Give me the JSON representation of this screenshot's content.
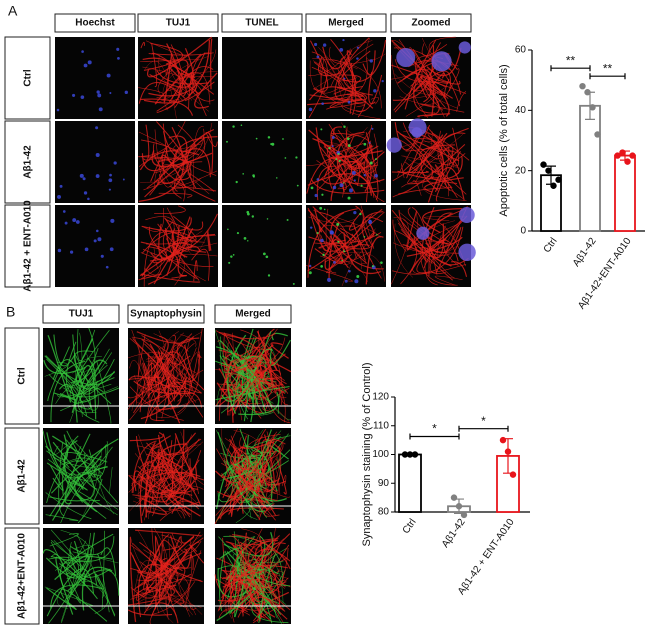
{
  "panels": {
    "a": {
      "label": "A",
      "columns": [
        "Hoechst",
        "TUJ1",
        "TUNEL",
        "Merged",
        "Zoomed"
      ],
      "rows": [
        "Ctrl",
        "Aβ1-42",
        "Aβ1-42 + ENT-A010"
      ]
    },
    "b": {
      "label": "B",
      "columns": [
        "TUJ1",
        "Synaptophysin",
        "Merged"
      ],
      "rows": [
        "Ctrl",
        "Aβ1-42",
        "Aβ1-42+ENT-A010"
      ]
    }
  },
  "chart_data": [
    {
      "type": "bar",
      "y_label": "Apoptotic cells (% of total cells)",
      "categories": [
        "Ctrl",
        "Aβ1-42",
        "Aβ1-42+ENT-A010"
      ],
      "values": [
        18.5,
        41.5,
        25
      ],
      "errors": [
        3,
        4.5,
        1.5
      ],
      "points": [
        [
          22,
          20,
          15,
          17
        ],
        [
          48,
          46,
          41,
          32
        ],
        [
          25,
          26,
          23,
          25
        ]
      ],
      "colors": [
        "#000000",
        "#808080",
        "#e8141b"
      ],
      "ylim": [
        0,
        60
      ],
      "yticks": [
        0,
        20,
        40,
        60
      ],
      "significance": [
        {
          "from": 0,
          "to": 1,
          "label": "**"
        },
        {
          "from": 1,
          "to": 2,
          "label": "**"
        }
      ]
    },
    {
      "type": "bar",
      "y_label": "Synaptophysin staining (% of Control)",
      "categories": [
        "Ctrl",
        "Aβ1-42",
        "Aβ1-42 + ENT-A010"
      ],
      "values": [
        100,
        82,
        99.5
      ],
      "errors": [
        0,
        2.5,
        6
      ],
      "points": [
        [
          100,
          100,
          100
        ],
        [
          85,
          82,
          79
        ],
        [
          105,
          101,
          93
        ]
      ],
      "colors": [
        "#000000",
        "#808080",
        "#e8141b"
      ],
      "ylim": [
        80,
        120
      ],
      "yticks": [
        80,
        90,
        100,
        110,
        120
      ],
      "significance": [
        {
          "from": 0,
          "to": 1,
          "label": "*"
        },
        {
          "from": 1,
          "to": 2,
          "label": "*"
        }
      ]
    }
  ]
}
